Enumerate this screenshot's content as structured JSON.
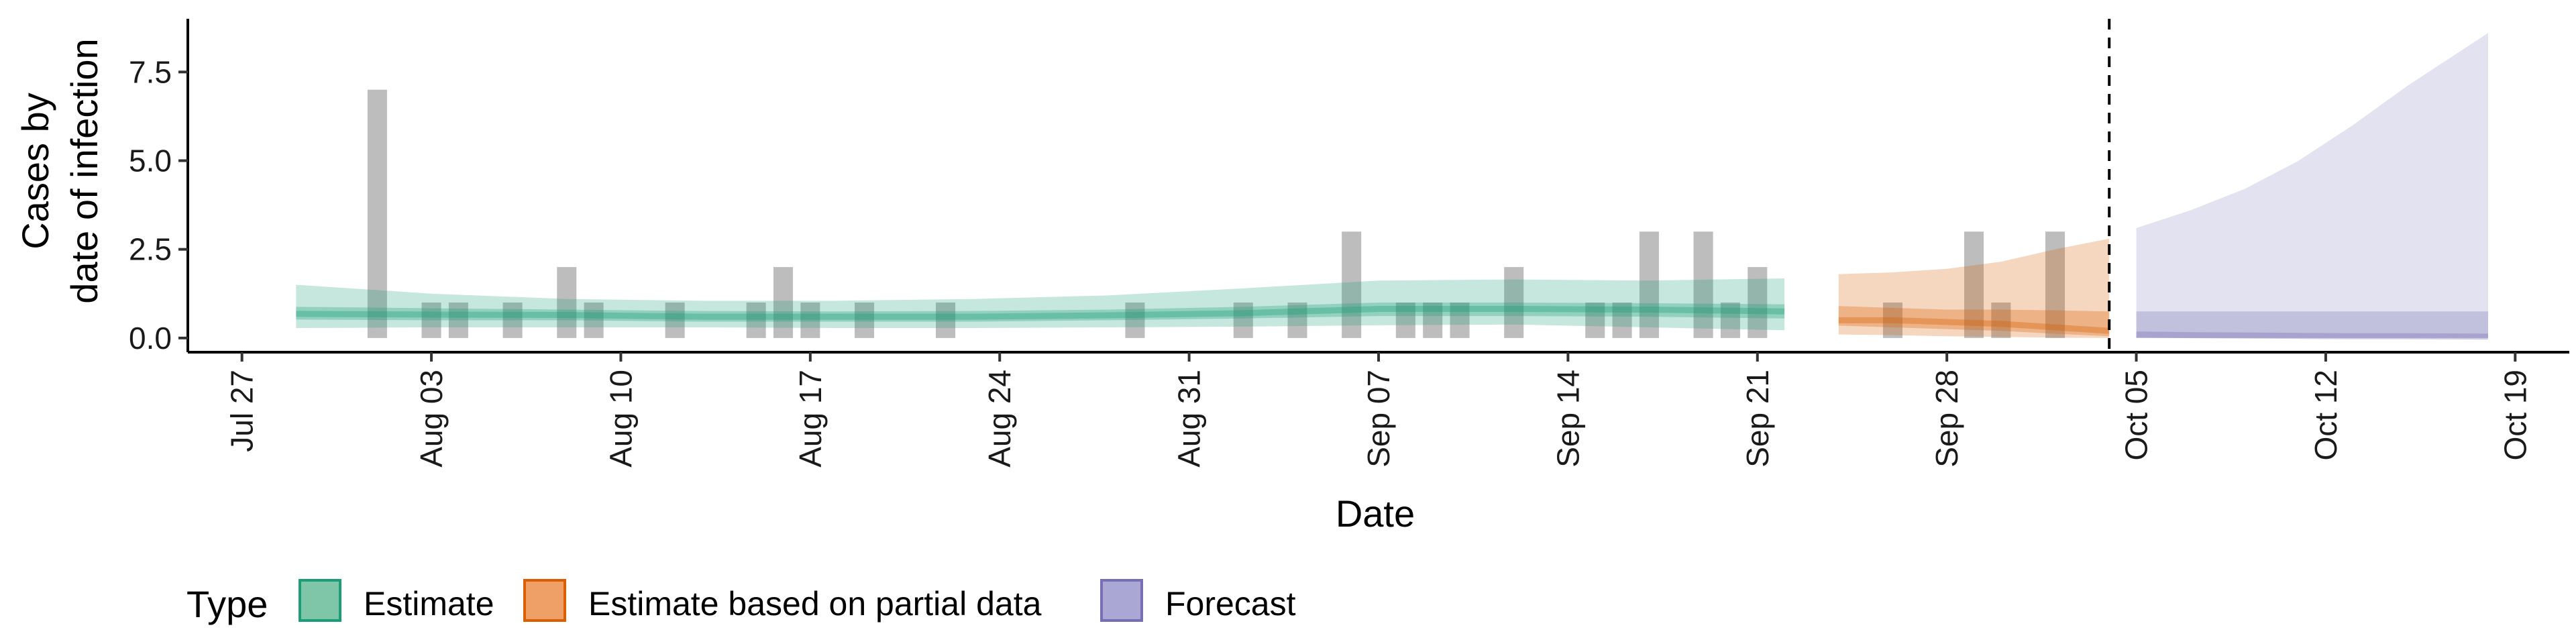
{
  "chart_data": {
    "type": "bar",
    "xlabel": "Date",
    "ylabel_lines": [
      "Cases by",
      "date of infection"
    ],
    "xlim": [
      "2020-07-25",
      "2020-10-21"
    ],
    "ylim": [
      -0.4,
      9.0
    ],
    "y_ticks": [
      0.0,
      2.5,
      5.0,
      7.5
    ],
    "y_tick_labels": [
      "0.0",
      "2.5",
      "5.0",
      "7.5"
    ],
    "x_ticks": [
      "2020-07-27",
      "2020-08-03",
      "2020-08-10",
      "2020-08-17",
      "2020-08-24",
      "2020-08-31",
      "2020-09-07",
      "2020-09-14",
      "2020-09-21",
      "2020-09-28",
      "2020-10-05",
      "2020-10-12",
      "2020-10-19"
    ],
    "x_tick_labels": [
      "Jul 27",
      "Aug 03",
      "Aug 10",
      "Aug 17",
      "Aug 24",
      "Aug 31",
      "Sep 07",
      "Sep 14",
      "Sep 21",
      "Sep 28",
      "Oct 05",
      "Oct 12",
      "Oct 19"
    ],
    "grid": false,
    "legend_position": "bottom",
    "legend_title": "Type",
    "legend": [
      {
        "label": "Estimate",
        "fill": "#7fc5a8",
        "stroke": "#1b9e77"
      },
      {
        "label": "Estimate based on partial data",
        "fill": "#eea066",
        "stroke": "#d95f02"
      },
      {
        "label": "Forecast",
        "fill": "#aaa7d4",
        "stroke": "#7570b3"
      }
    ],
    "bar_color": "#bdbdbd",
    "bars": {
      "x": [
        "2020-08-01",
        "2020-08-03",
        "2020-08-04",
        "2020-08-06",
        "2020-08-08",
        "2020-08-09",
        "2020-08-12",
        "2020-08-15",
        "2020-08-16",
        "2020-08-17",
        "2020-08-19",
        "2020-08-22",
        "2020-08-29",
        "2020-09-02",
        "2020-09-04",
        "2020-09-06",
        "2020-09-08",
        "2020-09-09",
        "2020-09-10",
        "2020-09-12",
        "2020-09-15",
        "2020-09-16",
        "2020-09-17",
        "2020-09-19",
        "2020-09-20",
        "2020-09-21",
        "2020-09-26",
        "2020-09-29",
        "2020-09-30",
        "2020-10-02"
      ],
      "values": [
        7,
        1,
        1,
        1,
        2,
        1,
        1,
        1,
        2,
        1,
        1,
        1,
        1,
        1,
        1,
        3,
        1,
        1,
        1,
        2,
        1,
        1,
        3,
        3,
        1,
        2,
        1,
        3,
        1,
        3
      ]
    },
    "vline": "2020-10-04",
    "series": [
      {
        "name": "Estimate",
        "color": "#1b9e77",
        "x": [
          "2020-07-29",
          "2020-08-03",
          "2020-08-08",
          "2020-08-13",
          "2020-08-18",
          "2020-08-23",
          "2020-08-28",
          "2020-09-02",
          "2020-09-07",
          "2020-09-12",
          "2020-09-17",
          "2020-09-22"
        ],
        "median": [
          0.68,
          0.66,
          0.65,
          0.6,
          0.6,
          0.6,
          0.64,
          0.7,
          0.82,
          0.82,
          0.8,
          0.75
        ],
        "lower_50": [
          0.52,
          0.5,
          0.5,
          0.46,
          0.46,
          0.46,
          0.5,
          0.55,
          0.62,
          0.62,
          0.6,
          0.55
        ],
        "upper_50": [
          0.88,
          0.84,
          0.8,
          0.76,
          0.75,
          0.76,
          0.8,
          0.88,
          1.0,
          1.0,
          0.98,
          0.95
        ],
        "lower_90": [
          0.28,
          0.3,
          0.3,
          0.3,
          0.28,
          0.28,
          0.3,
          0.32,
          0.36,
          0.38,
          0.3,
          0.22
        ],
        "upper_90": [
          1.5,
          1.25,
          1.1,
          1.05,
          1.05,
          1.1,
          1.2,
          1.4,
          1.62,
          1.65,
          1.62,
          1.68
        ]
      },
      {
        "name": "Estimate based on partial data",
        "color": "#d95f02",
        "x": [
          "2020-09-24",
          "2020-09-26",
          "2020-09-28",
          "2020-09-30",
          "2020-10-02",
          "2020-10-04"
        ],
        "median": [
          0.5,
          0.5,
          0.45,
          0.4,
          0.3,
          0.2
        ],
        "lower_50": [
          0.35,
          0.3,
          0.25,
          0.2,
          0.12,
          0.05
        ],
        "upper_50": [
          0.9,
          0.85,
          0.8,
          0.8,
          0.78,
          0.75
        ],
        "lower_90": [
          0.1,
          0.08,
          0.05,
          0.03,
          0.01,
          0.0
        ],
        "upper_90": [
          1.8,
          1.85,
          1.95,
          2.15,
          2.5,
          2.8
        ]
      },
      {
        "name": "Forecast",
        "color": "#7570b3",
        "x": [
          "2020-10-05",
          "2020-10-07",
          "2020-10-09",
          "2020-10-11",
          "2020-10-13",
          "2020-10-15",
          "2020-10-18"
        ],
        "median": [
          0.1,
          0.08,
          0.07,
          0.06,
          0.05,
          0.05,
          0.04
        ],
        "lower_50": [
          0.0,
          0.0,
          0.0,
          0.0,
          0.0,
          0.0,
          0.0
        ],
        "upper_50": [
          0.75,
          0.75,
          0.75,
          0.75,
          0.75,
          0.75,
          0.75
        ],
        "lower_90": [
          0.0,
          0.0,
          0.0,
          0.0,
          0.0,
          0.0,
          0.0
        ],
        "upper_90": [
          3.1,
          3.6,
          4.2,
          5.0,
          6.0,
          7.1,
          8.6
        ]
      }
    ]
  }
}
